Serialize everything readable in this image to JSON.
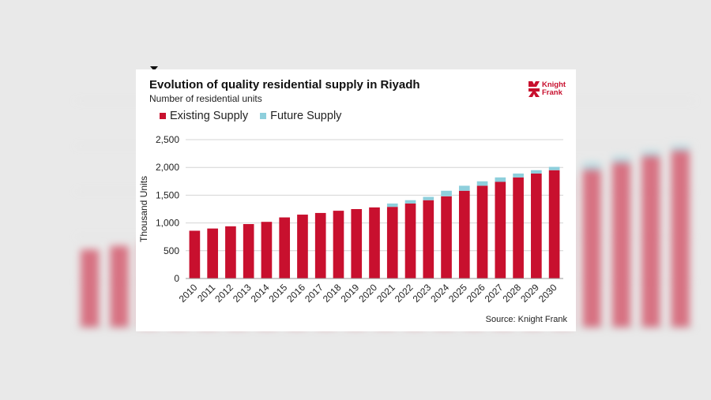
{
  "chart_data": {
    "type": "bar",
    "stacked": true,
    "title": "Evolution of quality residential supply in Riyadh",
    "subtitle": "Number of residential units",
    "ylabel": "Thousand Units",
    "xlabel": "",
    "ylim": [
      0,
      2500
    ],
    "yticks": [
      0,
      500,
      1000,
      1500,
      2000,
      2500
    ],
    "ytick_labels": [
      "0",
      "500",
      "1,000",
      "1,500",
      "2,000",
      "2,500"
    ],
    "grid": true,
    "legend_position": "top-left",
    "categories": [
      "2010",
      "2011",
      "2012",
      "2013",
      "2014",
      "2015",
      "2016",
      "2017",
      "2018",
      "2019",
      "2020",
      "2021",
      "2022",
      "2023",
      "2024",
      "2025",
      "2026",
      "2027",
      "2028",
      "2029",
      "2030"
    ],
    "series": [
      {
        "name": "Existing Supply",
        "color": "#c8102e",
        "values": [
          860,
          900,
          940,
          980,
          1020,
          1100,
          1150,
          1180,
          1220,
          1250,
          1280,
          1290,
          1350,
          1410,
          1480,
          1580,
          1670,
          1740,
          1820,
          1890,
          1950
        ]
      },
      {
        "name": "Future Supply",
        "color": "#8ecfdc",
        "values": [
          0,
          0,
          0,
          0,
          0,
          0,
          0,
          0,
          0,
          0,
          0,
          60,
          60,
          60,
          100,
          90,
          80,
          80,
          70,
          60,
          60
        ]
      }
    ],
    "source": "Source: Knight Frank"
  },
  "logo": {
    "text_line1": "Knight",
    "text_line2": "Frank",
    "brand_color": "#c8102e"
  }
}
